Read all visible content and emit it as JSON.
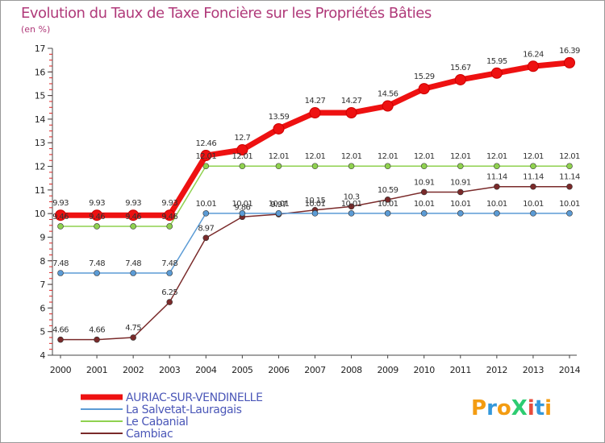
{
  "chart_data": {
    "type": "line",
    "title": "Evolution du Taux de Taxe Foncière sur les Propriétés Bâties",
    "subtitle": "(en %)",
    "xlabel": "",
    "ylabel": "",
    "categories": [
      "2000",
      "2001",
      "2002",
      "2003",
      "2004",
      "2005",
      "2006",
      "2007",
      "2008",
      "2009",
      "2010",
      "2011",
      "2012",
      "2013",
      "2014"
    ],
    "ylim": [
      4,
      17
    ],
    "yticks": [
      "4",
      "5",
      "6",
      "7",
      "8",
      "9",
      "10",
      "11",
      "12",
      "13",
      "14",
      "15",
      "16",
      "17"
    ],
    "grid": false,
    "legend_position": "bottom-left",
    "series": [
      {
        "name": "AURIAC-SUR-VENDINELLE",
        "color": "#ee1111",
        "values": [
          9.93,
          9.93,
          9.93,
          9.93,
          12.46,
          12.7,
          13.59,
          14.27,
          14.27,
          14.56,
          15.29,
          15.67,
          15.95,
          16.24,
          16.39
        ],
        "labels": [
          "9.93",
          "9.93",
          "9.93",
          "9.93",
          "12.46",
          "12.7",
          "13.59",
          "14.27",
          "14.27",
          "14.56",
          "15.29",
          "15.67",
          "15.95",
          "16.24",
          "16.39"
        ]
      },
      {
        "name": "La Salvetat-Lauragais",
        "color": "#5b9bd5",
        "values": [
          7.48,
          7.48,
          7.48,
          7.48,
          10.01,
          10.01,
          10.01,
          10.01,
          10.01,
          10.01,
          10.01,
          10.01,
          10.01,
          10.01,
          10.01
        ],
        "labels": [
          "7.48",
          "7.48",
          "7.48",
          "7.48",
          "10.01",
          "10.01",
          "10.01",
          "10.01",
          "10.01",
          "10.01",
          "10.01",
          "10.01",
          "10.01",
          "10.01",
          "10.01"
        ]
      },
      {
        "name": "Le Cabanial",
        "color": "#8fd14f",
        "values": [
          9.46,
          9.46,
          9.46,
          9.46,
          12.01,
          12.01,
          12.01,
          12.01,
          12.01,
          12.01,
          12.01,
          12.01,
          12.01,
          12.01,
          12.01
        ],
        "labels": [
          "9.46",
          "9.46",
          "9.46",
          "9.46",
          "12.01",
          "12.01",
          "12.01",
          "12.01",
          "12.01",
          "12.01",
          "12.01",
          "12.01",
          "12.01",
          "12.01",
          "12.01"
        ]
      },
      {
        "name": "Cambiac",
        "color": "#7a2a2a",
        "values": [
          4.66,
          4.66,
          4.75,
          6.25,
          8.97,
          9.86,
          9.97,
          10.15,
          10.3,
          10.59,
          10.91,
          10.91,
          11.14,
          11.14,
          11.14
        ],
        "labels": [
          "4.66",
          "4.66",
          "4.75",
          "6.25",
          "8.97",
          "9.86",
          "9.97",
          "10.15",
          "10.3",
          "10.59",
          "10.91",
          "10.91",
          "11.14",
          "11.14",
          "11.14"
        ]
      }
    ]
  },
  "branding": {
    "logo_text": "ProXiti",
    "logo_letters": [
      "P",
      "r",
      "o",
      "X",
      "i",
      "t",
      "i"
    ],
    "logo_colors": [
      "#f39c12",
      "#3498db",
      "#f39c12",
      "#2ecc71",
      "#e74c3c",
      "#3498db",
      "#f39c12"
    ]
  }
}
